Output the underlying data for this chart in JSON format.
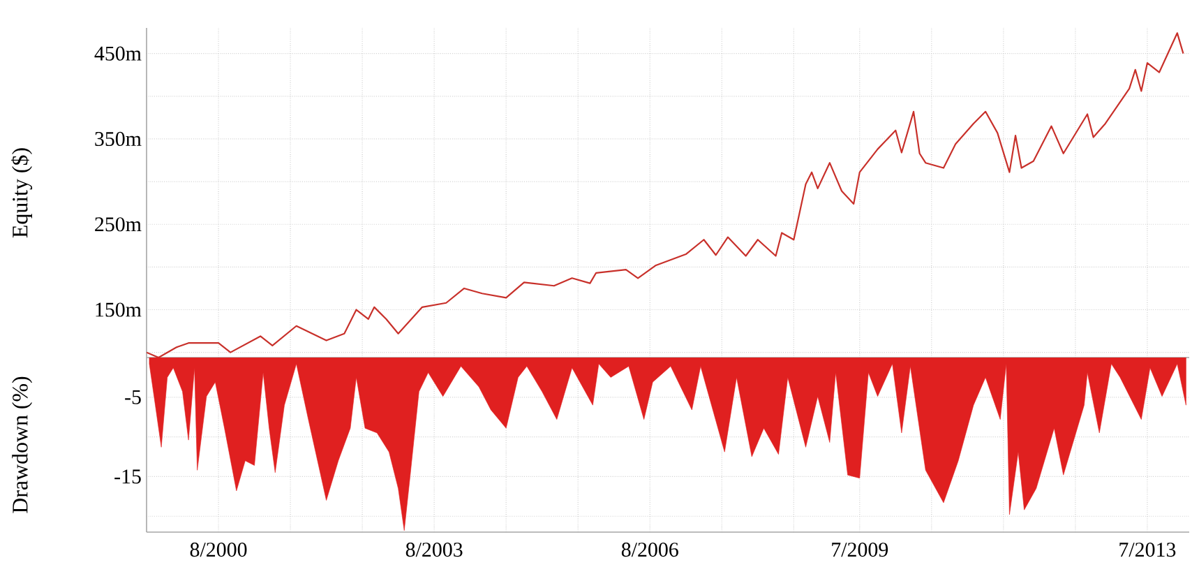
{
  "chart_data": [
    {
      "type": "line",
      "ylabel": "Equity ($)",
      "color": "#c8302a",
      "grid": true,
      "tick_labels": "y",
      "x": [
        "1999-08",
        "1999-10",
        "2000-01",
        "2000-03",
        "2000-08",
        "2000-10",
        "2001-03",
        "2001-05",
        "2001-09",
        "2002-02",
        "2002-05",
        "2002-07",
        "2002-09",
        "2002-10",
        "2002-12",
        "2003-02",
        "2003-06",
        "2003-10",
        "2004-01",
        "2004-04",
        "2004-08",
        "2004-11",
        "2005-04",
        "2005-07",
        "2005-10",
        "2005-11",
        "2006-04",
        "2006-06",
        "2006-09",
        "2007-02",
        "2007-05",
        "2007-07",
        "2007-09",
        "2007-12",
        "2008-02",
        "2008-05",
        "2008-06",
        "2008-08",
        "2008-10",
        "2008-11",
        "2008-12",
        "2009-02",
        "2009-04",
        "2009-06",
        "2009-07",
        "2009-10",
        "2010-01",
        "2010-02",
        "2010-04",
        "2010-05",
        "2010-06",
        "2010-09",
        "2010-11",
        "2011-02",
        "2011-04",
        "2011-06",
        "2011-08",
        "2011-09",
        "2011-10",
        "2011-12",
        "2012-03",
        "2012-05",
        "2012-09",
        "2012-10",
        "2012-12",
        "2013-04",
        "2013-05",
        "2013-06",
        "2013-07",
        "2013-09",
        "2013-12",
        "2014-01"
      ],
      "values": [
        100,
        94,
        106,
        111,
        111,
        100,
        119,
        108,
        131,
        114,
        122,
        150,
        139,
        153,
        139,
        122,
        153,
        158,
        175,
        169,
        164,
        182,
        178,
        187,
        181,
        193,
        197,
        187,
        202,
        215,
        232,
        214,
        235,
        213,
        232,
        213,
        240,
        232,
        297,
        311,
        292,
        322,
        289,
        274,
        311,
        338,
        360,
        334,
        382,
        333,
        322,
        316,
        344,
        368,
        382,
        357,
        311,
        354,
        316,
        324,
        365,
        333,
        379,
        352,
        368,
        409,
        431,
        406,
        439,
        428,
        474,
        450
      ],
      "xlim": [
        "1999-08",
        "2014-02"
      ],
      "xticks": [
        {
          "value": "2000-08",
          "label": null
        },
        {
          "value": "2001-08",
          "label": null
        },
        {
          "value": "2002-08",
          "label": null
        },
        {
          "value": "2003-08",
          "label": null
        },
        {
          "value": "2004-08",
          "label": null
        },
        {
          "value": "2005-08",
          "label": null
        },
        {
          "value": "2006-08",
          "label": null
        },
        {
          "value": "2007-08",
          "label": null
        },
        {
          "value": "2008-08",
          "label": null
        },
        {
          "value": "2009-07",
          "label": null
        },
        {
          "value": "2010-07",
          "label": null
        },
        {
          "value": "2011-07",
          "label": null
        },
        {
          "value": "2012-07",
          "label": null
        },
        {
          "value": "2013-07",
          "label": null
        }
      ],
      "ylim": [
        94,
        480
      ],
      "yticks": [
        {
          "value": 100,
          "label": null
        },
        {
          "value": 150,
          "label": "150m"
        },
        {
          "value": 200,
          "label": null
        },
        {
          "value": 250,
          "label": "250m"
        },
        {
          "value": 300,
          "label": null
        },
        {
          "value": 350,
          "label": "350m"
        },
        {
          "value": 400,
          "label": null
        },
        {
          "value": 450,
          "label": "450m"
        }
      ]
    },
    {
      "type": "area",
      "ylabel": "Drawdown (%)",
      "color": "#e02020",
      "grid": true,
      "x": [
        "1999-08-15",
        "1999-09-15",
        "1999-10-15",
        "1999-11-15",
        "1999-12-15",
        "2000-02-01",
        "2000-03-01",
        "2000-04-01",
        "2000-04-15",
        "2000-06-01",
        "2000-07-15",
        "2000-09-01",
        "2000-11-01",
        "2000-12-15",
        "2001-02-01",
        "2001-03-15",
        "2001-04-15",
        "2001-05-15",
        "2001-07-01",
        "2001-09-01",
        "2001-11-01",
        "2002-02-01",
        "2002-04-01",
        "2002-06-01",
        "2002-07-01",
        "2002-08-15",
        "2002-10-15",
        "2002-12-15",
        "2003-02-01",
        "2003-03-01",
        "2003-04-01",
        "2003-05-15",
        "2003-07-01",
        "2003-09-15",
        "2003-12-15",
        "2004-03-15",
        "2004-05-15",
        "2004-08-01",
        "2004-10-01",
        "2004-11-15",
        "2005-02-01",
        "2005-04-15",
        "2005-07-01",
        "2005-10-15",
        "2005-11-15",
        "2006-01-15",
        "2006-04-15",
        "2006-07-01",
        "2006-08-15",
        "2006-11-15",
        "2007-03-01",
        "2007-04-15",
        "2007-08-15",
        "2007-10-15",
        "2008-01-01",
        "2008-03-01",
        "2008-05-15",
        "2008-07-01",
        "2008-10-01",
        "2008-12-01",
        "2009-02-01",
        "2009-03-01",
        "2009-05-01",
        "2009-07-01",
        "2009-08-15",
        "2009-10-01",
        "2009-12-15",
        "2010-02-01",
        "2010-03-15",
        "2010-06-01",
        "2010-09-01",
        "2010-11-15",
        "2011-02-01",
        "2011-04-01",
        "2011-06-15",
        "2011-07-15",
        "2011-08-01",
        "2011-09-15",
        "2011-10-15",
        "2011-12-15",
        "2012-03-15",
        "2012-05-01",
        "2012-08-15",
        "2012-09-01",
        "2012-11-01",
        "2013-01-01",
        "2013-02-15",
        "2013-06-01",
        "2013-07-15",
        "2013-09-15",
        "2013-12-01",
        "2014-01-15"
      ],
      "values": [
        -0.8,
        -6,
        -11.3,
        -2.5,
        -1.3,
        -4.3,
        -10.4,
        -1.3,
        -14.2,
        -4.9,
        -3.1,
        -8.9,
        -16.8,
        -13,
        -13.6,
        -1.9,
        -8.9,
        -14.5,
        -6,
        -0.8,
        -7.8,
        -18,
        -13,
        -8.9,
        -2.5,
        -8.9,
        -9.5,
        -11.9,
        -16.5,
        -21.8,
        -14.8,
        -4.3,
        -1.9,
        -4.9,
        -1.1,
        -3.7,
        -6.6,
        -8.9,
        -2.5,
        -1.1,
        -4.3,
        -7.8,
        -1.3,
        -6,
        -0.8,
        -2.5,
        -1.1,
        -7.8,
        -3.1,
        -1.1,
        -6.6,
        -1.1,
        -11.9,
        -2.5,
        -12.5,
        -8.9,
        -12.2,
        -2.5,
        -11.3,
        -4.9,
        -10.7,
        -1.9,
        -14.8,
        -15.2,
        -1.9,
        -4.9,
        -0.8,
        -9.5,
        -1.1,
        -14.2,
        -18.3,
        -13,
        -6,
        -2.5,
        -7.8,
        -0.8,
        -19.8,
        -11.9,
        -19.2,
        -16.5,
        -8.9,
        -14.8,
        -6,
        -1.9,
        -9.5,
        -0.8,
        -2.5,
        -7.8,
        -1.3,
        -4.9,
        -0.8,
        -6
      ],
      "xlim": [
        "1999-08",
        "2014-02"
      ],
      "xticks": [
        {
          "value": "2000-08",
          "label": "8/2000"
        },
        {
          "value": "2001-08",
          "label": null
        },
        {
          "value": "2002-08",
          "label": null
        },
        {
          "value": "2003-08",
          "label": "8/2003"
        },
        {
          "value": "2004-08",
          "label": null
        },
        {
          "value": "2005-08",
          "label": null
        },
        {
          "value": "2006-08",
          "label": "8/2006"
        },
        {
          "value": "2007-08",
          "label": null
        },
        {
          "value": "2008-08",
          "label": null
        },
        {
          "value": "2009-07",
          "label": "7/2009"
        },
        {
          "value": "2010-07",
          "label": null
        },
        {
          "value": "2011-07",
          "label": null
        },
        {
          "value": "2012-07",
          "label": null
        },
        {
          "value": "2013-07",
          "label": "7/2013"
        }
      ],
      "ylim": [
        -22,
        0
      ],
      "yticks": [
        {
          "value": -20,
          "label": null
        },
        -15,
        {
          "value": -10,
          "label": null
        },
        -5
      ]
    }
  ]
}
